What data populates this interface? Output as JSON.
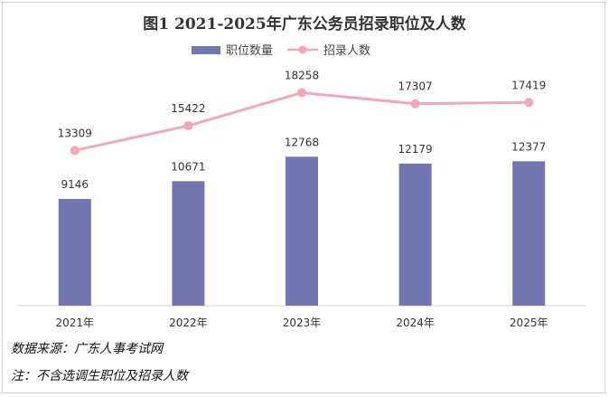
{
  "chart_data": {
    "type": "bar+line",
    "title": "图1 2021-2025年广东公务员招录职位及人数",
    "categories": [
      "2021年",
      "2022年",
      "2023年",
      "2024年",
      "2025年"
    ],
    "series": [
      {
        "name": "职位数量",
        "type": "bar",
        "values": [
          9146,
          10671,
          12768,
          12179,
          12377
        ],
        "color": "#7275b0"
      },
      {
        "name": "招录人数",
        "type": "line",
        "values": [
          13309,
          15422,
          18258,
          17307,
          17419
        ],
        "color": "#f0a8b8"
      }
    ],
    "ylim": [
      0,
      20000
    ],
    "grid": false,
    "legend": "top-center"
  },
  "notes": {
    "source": "数据来源：广东人事考试网",
    "remark": "注：不含选调生职位及招录人数"
  }
}
